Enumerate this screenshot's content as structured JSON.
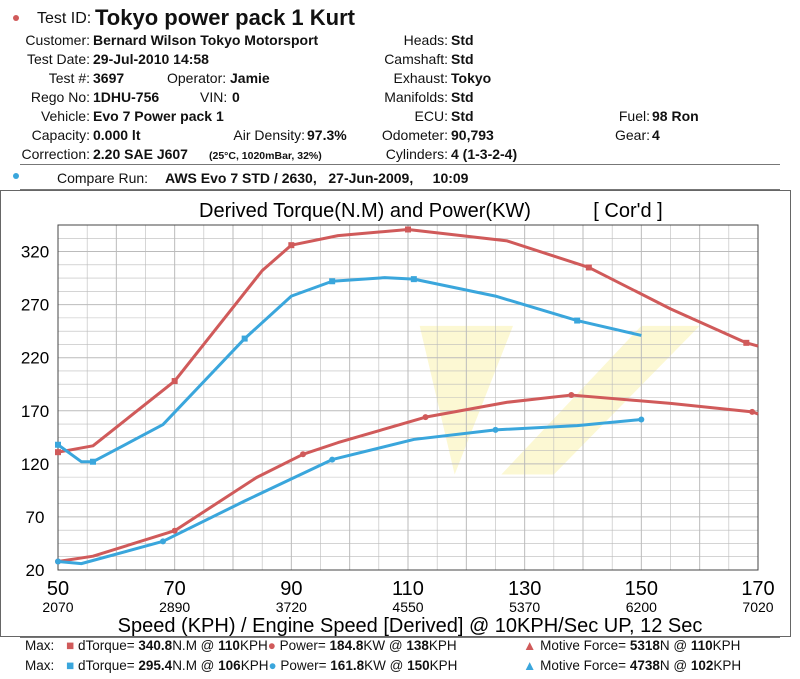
{
  "header": {
    "test_id_label": "Test ID:",
    "test_id": "Tokyo power pack 1 Kurt",
    "customer_label": "Customer:",
    "customer": "Bernard Wilson Tokyo Motorsport",
    "test_date_label": "Test Date:",
    "test_date": "29-Jul-2010 14:58",
    "test_num_label": "Test #:",
    "test_num": "3697",
    "operator_label": "Operator:",
    "operator": "Jamie",
    "rego_label": "Rego No:",
    "rego": "1DHU-756",
    "vin_label": "VIN:",
    "vin": "0",
    "vehicle_label": "Vehicle:",
    "vehicle": "Evo 7 Power pack 1",
    "capacity_label": "Capacity:",
    "capacity": "0.000 lt",
    "air_density_label": "Air Density:",
    "air_density": "97.3%",
    "correction_label": "Correction:",
    "correction": "2.20 SAE J607",
    "conditions": "(25°C, 1020mBar, 32%)",
    "heads_label": "Heads:",
    "heads": "Std",
    "camshaft_label": "Camshaft:",
    "camshaft": "Std",
    "exhaust_label": "Exhaust:",
    "exhaust": "Tokyo",
    "manifolds_label": "Manifolds:",
    "manifolds": "Std",
    "ecu_label": "ECU:",
    "ecu": "Std",
    "odometer_label": "Odometer:",
    "odometer": "90,793",
    "cylinders_label": "Cylinders:",
    "cylinders": "4 (1-3-2-4)",
    "fuel_label": "Fuel:",
    "fuel": "98 Ron",
    "gear_label": "Gear:",
    "gear": "4",
    "compare_label": "Compare Run:",
    "compare": "AWS Evo 7 STD / 2630,   27-Jun-2009,     10:09"
  },
  "colors": {
    "red": "#d05a5a",
    "blue": "#3aa6dc"
  },
  "chart_data": {
    "type": "line",
    "title": "Derived Torque(N.M) and Power(KW)",
    "title_suffix": "[ Cor'd ]",
    "xlabel": "Speed (KPH) / Engine Speed [Derived] @ 10KPH/Sec UP, 12 Sec",
    "xlim": [
      50,
      170
    ],
    "ylim": [
      20,
      345
    ],
    "x_ticks": [
      "50",
      "70",
      "90",
      "110",
      "130",
      "150",
      "170"
    ],
    "x_rpm_ticks": [
      "2070",
      "2890",
      "3720",
      "4550",
      "5370",
      "6200",
      "7020"
    ],
    "y_ticks": [
      "320",
      "270",
      "220",
      "170",
      "120",
      "70",
      "20"
    ],
    "series": [
      {
        "name": "Torque (Tokyo power pack 1 Kurt)",
        "color": "#d05a5a",
        "marker": "square",
        "points": [
          [
            50,
            131
          ],
          [
            56,
            137
          ],
          [
            70,
            198
          ],
          [
            85,
            302
          ],
          [
            90,
            326
          ],
          [
            98,
            335
          ],
          [
            110,
            340.8
          ],
          [
            127,
            330
          ],
          [
            141,
            305
          ],
          [
            155,
            266
          ],
          [
            168,
            234
          ],
          [
            170,
            231
          ]
        ]
      },
      {
        "name": "Torque (Compare run)",
        "color": "#3aa6dc",
        "marker": "square",
        "points": [
          [
            50,
            138
          ],
          [
            54,
            122
          ],
          [
            56,
            122
          ],
          [
            68,
            157
          ],
          [
            82,
            238
          ],
          [
            90,
            278
          ],
          [
            97,
            292
          ],
          [
            106,
            295.4
          ],
          [
            111,
            294
          ],
          [
            125,
            278
          ],
          [
            139,
            255
          ],
          [
            150,
            241
          ]
        ]
      },
      {
        "name": "Power (Tokyo power pack 1 Kurt)",
        "color": "#d05a5a",
        "marker": "circle",
        "points": [
          [
            50,
            28
          ],
          [
            56,
            33
          ],
          [
            70,
            57
          ],
          [
            84,
            107
          ],
          [
            92,
            129
          ],
          [
            98,
            140
          ],
          [
            113,
            164
          ],
          [
            127,
            178
          ],
          [
            138,
            184.8
          ],
          [
            155,
            177
          ],
          [
            169,
            169
          ],
          [
            170,
            167
          ]
        ]
      },
      {
        "name": "Power (Compare run)",
        "color": "#3aa6dc",
        "marker": "circle",
        "points": [
          [
            50,
            28
          ],
          [
            54,
            26
          ],
          [
            68,
            47
          ],
          [
            82,
            85
          ],
          [
            97,
            124
          ],
          [
            111,
            143
          ],
          [
            125,
            152
          ],
          [
            139,
            156
          ],
          [
            150,
            161.8
          ]
        ]
      }
    ]
  },
  "max_rows": [
    {
      "label": "Max:",
      "dtorque_label": "dTorque=",
      "dtorque": "340.8",
      "dtorque_unit": "N.M @",
      "dtorque_at": "110",
      "kph": "KPH",
      "power_label": "Power=",
      "power": "184.8",
      "power_unit": "KW @",
      "power_at": "138",
      "mf_label": "Motive Force=",
      "mf": "5318",
      "mf_unit": "N @",
      "mf_at": "110"
    },
    {
      "label": "Max:",
      "dtorque_label": "dTorque=",
      "dtorque": "295.4",
      "dtorque_unit": "N.M @",
      "dtorque_at": "106",
      "kph": "KPH",
      "power_label": "Power=",
      "power": "161.8",
      "power_unit": "KW @",
      "power_at": "150",
      "mf_label": "Motive Force=",
      "mf": "4738",
      "mf_unit": "N @",
      "mf_at": "102"
    }
  ]
}
